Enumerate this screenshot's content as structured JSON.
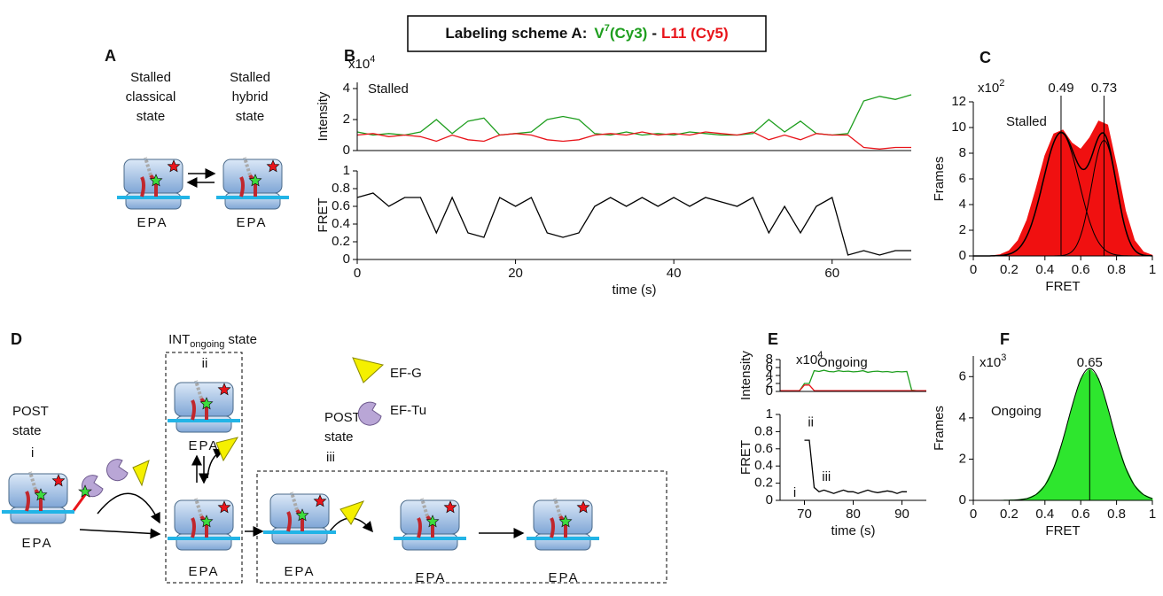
{
  "header": {
    "label": "Labeling scheme A:",
    "donor": "V",
    "donor_superscript": "7",
    "donor_dye": "(Cy3)",
    "separator": "-",
    "acceptor": "L11 (Cy5)"
  },
  "panel_labels": [
    "A",
    "B",
    "C",
    "D",
    "E",
    "F"
  ],
  "panel_a": {
    "left_state": [
      "Stalled",
      "classical",
      "state"
    ],
    "right_state": [
      "Stalled",
      "hybrid",
      "state"
    ],
    "site_labels": [
      "EPA",
      "EPA"
    ]
  },
  "panel_d": {
    "post_state_1": [
      "POST",
      "state"
    ],
    "post_state_1_index": "i",
    "int_state": {
      "name": "INT",
      "subscript": "ongoing",
      "suffix": "state"
    },
    "int_state_index": "ii",
    "post_state_2": [
      "POST",
      "state"
    ],
    "post_state_2_index": "iii",
    "legend": [
      "EF-G",
      "EF-Tu"
    ],
    "site_labels": [
      "EPA",
      "EPA",
      "EPA",
      "EPA",
      "EPA",
      "EPA"
    ]
  },
  "chart_data": [
    {
      "type": "line",
      "ylabel": "Intensity",
      "scale": {
        "base": "x10",
        "exponent": "4"
      },
      "annotation": "Stalled",
      "x": [
        0,
        2,
        4,
        6,
        8,
        10,
        12,
        14,
        16,
        18,
        20,
        22,
        24,
        26,
        28,
        30,
        32,
        34,
        36,
        38,
        40,
        42,
        44,
        46,
        48,
        50,
        52,
        54,
        56,
        58,
        60,
        62,
        64,
        66,
        68,
        70
      ],
      "series": [
        {
          "color": "#1e9e1e",
          "values": [
            1.2,
            1.0,
            1.1,
            1.0,
            1.2,
            2.0,
            1.1,
            1.9,
            2.1,
            1.0,
            1.1,
            1.2,
            2.0,
            2.2,
            2.0,
            1.1,
            1.0,
            1.2,
            1.0,
            1.1,
            1.0,
            1.2,
            1.1,
            1.0,
            1.0,
            1.1,
            2.0,
            1.2,
            1.9,
            1.1,
            1.0,
            1.1,
            3.2,
            3.5,
            3.3,
            3.6
          ]
        },
        {
          "color": "#e8141a",
          "values": [
            1.0,
            1.1,
            0.9,
            1.0,
            0.9,
            0.6,
            1.0,
            0.7,
            0.6,
            1.0,
            1.1,
            1.0,
            0.7,
            0.6,
            0.7,
            1.0,
            1.1,
            1.0,
            1.2,
            1.0,
            1.1,
            1.0,
            1.2,
            1.1,
            1.0,
            1.2,
            0.7,
            1.0,
            0.7,
            1.1,
            1.0,
            1.0,
            0.2,
            0.1,
            0.2,
            0.2
          ]
        }
      ],
      "xlim": [
        0,
        70
      ],
      "ylim": [
        0,
        4.4
      ],
      "yticks": [
        0,
        2,
        4
      ]
    },
    {
      "type": "line",
      "ylabel": "FRET",
      "xlabel": "time (s)",
      "x": [
        0,
        2,
        4,
        6,
        8,
        10,
        12,
        14,
        16,
        18,
        20,
        22,
        24,
        26,
        28,
        30,
        32,
        34,
        36,
        38,
        40,
        42,
        44,
        46,
        48,
        50,
        52,
        54,
        56,
        58,
        60,
        62,
        64,
        66,
        68,
        70
      ],
      "series": [
        {
          "color": "#000000",
          "values": [
            0.7,
            0.75,
            0.6,
            0.7,
            0.7,
            0.3,
            0.7,
            0.3,
            0.25,
            0.7,
            0.6,
            0.7,
            0.3,
            0.25,
            0.3,
            0.6,
            0.7,
            0.6,
            0.7,
            0.6,
            0.7,
            0.6,
            0.7,
            0.65,
            0.6,
            0.7,
            0.3,
            0.6,
            0.3,
            0.6,
            0.7,
            0.05,
            0.1,
            0.05,
            0.1,
            0.1
          ]
        }
      ],
      "xlim": [
        0,
        70
      ],
      "xticks": [
        0,
        20,
        40,
        60
      ],
      "ylim": [
        0,
        1
      ],
      "yticks": [
        0,
        0.2,
        0.4,
        0.6,
        0.8,
        1
      ]
    },
    {
      "type": "area",
      "ylabel": "Frames",
      "xlabel": "FRET",
      "scale": {
        "base": "x10",
        "exponent": "2"
      },
      "annotation": "Stalled",
      "x": [
        0,
        0.05,
        0.1,
        0.15,
        0.2,
        0.25,
        0.3,
        0.35,
        0.4,
        0.45,
        0.5,
        0.55,
        0.6,
        0.65,
        0.7,
        0.75,
        0.8,
        0.85,
        0.9,
        0.95,
        1
      ],
      "values": [
        0,
        0,
        0,
        0.1,
        0.4,
        1.2,
        2.8,
        5.2,
        7.8,
        9.5,
        9.8,
        8.8,
        8.3,
        9.2,
        10.5,
        10.2,
        7,
        3.5,
        1.2,
        0.3,
        0.05
      ],
      "color": "#f01010",
      "fit_color": "#000000",
      "fits": [
        {
          "mean": 0.49,
          "amplitude": 9.6,
          "sigma": 0.1
        },
        {
          "mean": 0.73,
          "amplitude": 9,
          "sigma": 0.07
        }
      ],
      "xlim": [
        0,
        1
      ],
      "xticks": [
        0,
        0.2,
        0.4,
        0.6,
        0.8,
        1
      ],
      "ylim": [
        0,
        12
      ],
      "yticks": [
        0,
        2,
        4,
        6,
        8,
        10,
        12
      ]
    },
    {
      "type": "line",
      "ylabel": "Intensity",
      "scale": {
        "base": "x10",
        "exponent": "4"
      },
      "annotation": "Ongoing",
      "x": [
        65,
        66,
        67,
        68,
        69,
        70,
        71,
        72,
        73,
        74,
        75,
        76,
        77,
        78,
        79,
        80,
        81,
        82,
        83,
        84,
        85,
        86,
        87,
        88,
        89,
        90,
        91,
        92,
        93,
        94,
        95
      ],
      "series": [
        {
          "color": "#1e9e1e",
          "values": [
            0.2,
            0.2,
            0.2,
            0.2,
            0.2,
            2,
            2,
            5.2,
            5,
            5.3,
            5,
            4.9,
            5.2,
            5,
            5.1,
            4.9,
            5,
            5.2,
            4.8,
            5,
            5.1,
            4.9,
            5,
            4.8,
            5,
            4.9,
            5,
            0.3,
            0.2,
            0.2,
            0.2
          ]
        },
        {
          "color": "#e8141a",
          "values": [
            0.2,
            0.2,
            0.2,
            0.2,
            0.2,
            1.6,
            1.6,
            0.2,
            0.2,
            0.2,
            0.2,
            0.2,
            0.2,
            0.2,
            0.2,
            0.2,
            0.2,
            0.2,
            0.2,
            0.2,
            0.2,
            0.2,
            0.2,
            0.2,
            0.2,
            0.2,
            0.2,
            0.2,
            0.2,
            0.2,
            0.2
          ]
        }
      ],
      "xlim": [
        65,
        95
      ],
      "ylim": [
        0,
        8
      ],
      "yticks": [
        0,
        2,
        4,
        6,
        8
      ]
    },
    {
      "type": "line",
      "ylabel": "FRET",
      "xlabel": "time (s)",
      "annotations": [
        "i",
        "ii",
        "iii"
      ],
      "x": [
        65,
        66,
        67,
        68,
        69,
        70,
        71,
        72,
        73,
        74,
        75,
        76,
        77,
        78,
        79,
        80,
        81,
        82,
        83,
        84,
        85,
        86,
        87,
        88,
        89,
        90,
        91,
        92,
        93,
        94,
        95
      ],
      "series": [
        {
          "color": "#000000",
          "values": [
            null,
            null,
            null,
            null,
            null,
            0.7,
            0.7,
            0.15,
            0.1,
            0.12,
            0.1,
            0.08,
            0.1,
            0.12,
            0.1,
            0.1,
            0.08,
            0.1,
            0.12,
            0.1,
            0.09,
            0.1,
            0.11,
            0.1,
            0.08,
            0.1,
            0.1,
            null,
            null,
            null,
            null
          ]
        }
      ],
      "xlim": [
        65,
        95
      ],
      "xticks": [
        70,
        80,
        90
      ],
      "ylim": [
        0,
        1
      ],
      "yticks": [
        0,
        0.2,
        0.4,
        0.6,
        0.8,
        1
      ]
    },
    {
      "type": "area",
      "ylabel": "Frames",
      "xlabel": "FRET",
      "scale": {
        "base": "x10",
        "exponent": "3"
      },
      "annotation": "Ongoing",
      "x": [
        0,
        0.05,
        0.1,
        0.15,
        0.2,
        0.25,
        0.3,
        0.35,
        0.4,
        0.45,
        0.5,
        0.55,
        0.6,
        0.65,
        0.7,
        0.75,
        0.8,
        0.85,
        0.9,
        0.95,
        1
      ],
      "values": [
        0,
        0,
        0,
        0,
        0.01,
        0.03,
        0.09,
        0.28,
        0.73,
        1.6,
        2.9,
        4.5,
        5.9,
        6.4,
        5.9,
        4.5,
        2.9,
        1.6,
        0.73,
        0.28,
        0.09
      ],
      "color": "#2ee62e",
      "fit_color": "#000000",
      "fits": [
        {
          "mean": 0.65,
          "amplitude": 6.4,
          "sigma": 0.12
        }
      ],
      "xlim": [
        0,
        1
      ],
      "xticks": [
        0,
        0.2,
        0.4,
        0.6,
        0.8,
        1
      ],
      "ylim": [
        0,
        7
      ],
      "yticks": [
        0,
        2,
        4,
        6
      ]
    }
  ]
}
